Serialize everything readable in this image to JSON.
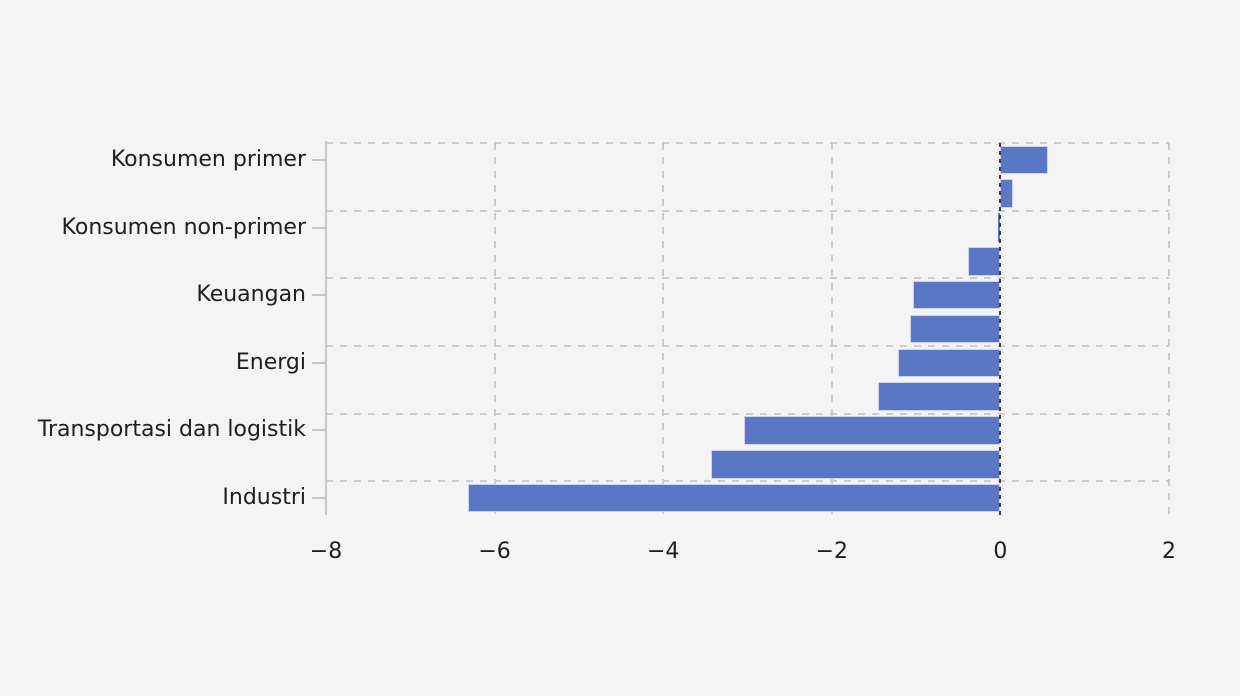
{
  "chart_data": {
    "type": "bar",
    "orientation": "horizontal",
    "title": "",
    "xlabel": "",
    "ylabel": "",
    "legend": null,
    "xlim": [
      -8,
      2
    ],
    "xticks": [
      {
        "value": -8,
        "label": "−8"
      },
      {
        "value": -6,
        "label": "−6"
      },
      {
        "value": -4,
        "label": "−4"
      },
      {
        "value": -2,
        "label": "−2"
      },
      {
        "value": 0,
        "label": "0"
      },
      {
        "value": 2,
        "label": "2"
      }
    ],
    "categories": [
      "Konsumen primer",
      "Konsumen non-primer",
      "Keuangan",
      "Energi",
      "Transportasi dan logistik",
      "Industri"
    ],
    "bars": [
      {
        "tick_label": "Konsumen primer",
        "value": 0.57
      },
      {
        "tick_label": "",
        "value": 0.15
      },
      {
        "tick_label": "Konsumen non-primer",
        "value": -0.03
      },
      {
        "tick_label": "",
        "value": -0.38
      },
      {
        "tick_label": "Keuangan",
        "value": -1.04
      },
      {
        "tick_label": "",
        "value": -1.07
      },
      {
        "tick_label": "Energi",
        "value": -1.21
      },
      {
        "tick_label": "",
        "value": -1.45
      },
      {
        "tick_label": "Transportasi dan logistik",
        "value": -3.04
      },
      {
        "tick_label": "",
        "value": -3.43
      },
      {
        "tick_label": "Industri",
        "value": -6.32
      }
    ],
    "grid": {
      "style": "dashed",
      "h_boundaries": [
        0,
        2,
        4,
        6,
        8,
        10
      ],
      "v_values": [
        -6,
        -4,
        -2,
        2
      ],
      "zero_line": 0
    },
    "colors": {
      "background": "#F4F4F5",
      "bar_fill": "#5A77C6",
      "bar_edge": "#CED4EE",
      "grid_light": "#CBCCCE",
      "zero_line": "#3D3D3D",
      "axis_spine": "#C4C6C8",
      "text": "#1E1E1E"
    }
  }
}
